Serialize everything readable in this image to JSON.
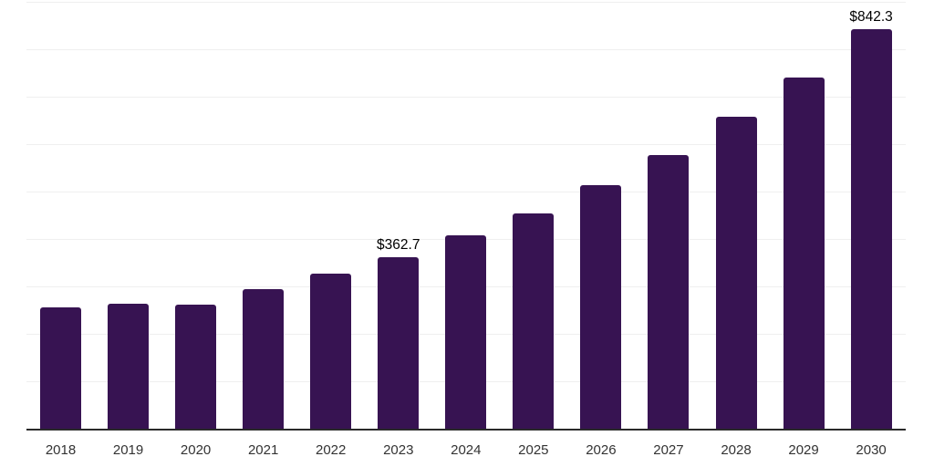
{
  "chart_data": {
    "type": "bar",
    "title": "",
    "xlabel": "",
    "ylabel": "",
    "categories": [
      "2018",
      "2019",
      "2020",
      "2021",
      "2022",
      "2023",
      "2024",
      "2025",
      "2026",
      "2027",
      "2028",
      "2029",
      "2030"
    ],
    "values": [
      256,
      265,
      262,
      294,
      328,
      362.7,
      408,
      454,
      513,
      577,
      658,
      740,
      842.3
    ],
    "annotations": [
      {
        "index": 5,
        "text": "$362.7"
      },
      {
        "index": 12,
        "text": "$842.3"
      }
    ],
    "ylim": [
      0,
      900
    ],
    "grid_step": 100,
    "grid": "horizontal",
    "legend_position": "none",
    "y_axis_labels_visible": false,
    "colors": {
      "bar": "#371352",
      "gridline": "#efefef",
      "axis_line": "#2a2a2a",
      "tick_label": "#333333",
      "annotation": "#000000",
      "background": "#ffffff"
    }
  }
}
